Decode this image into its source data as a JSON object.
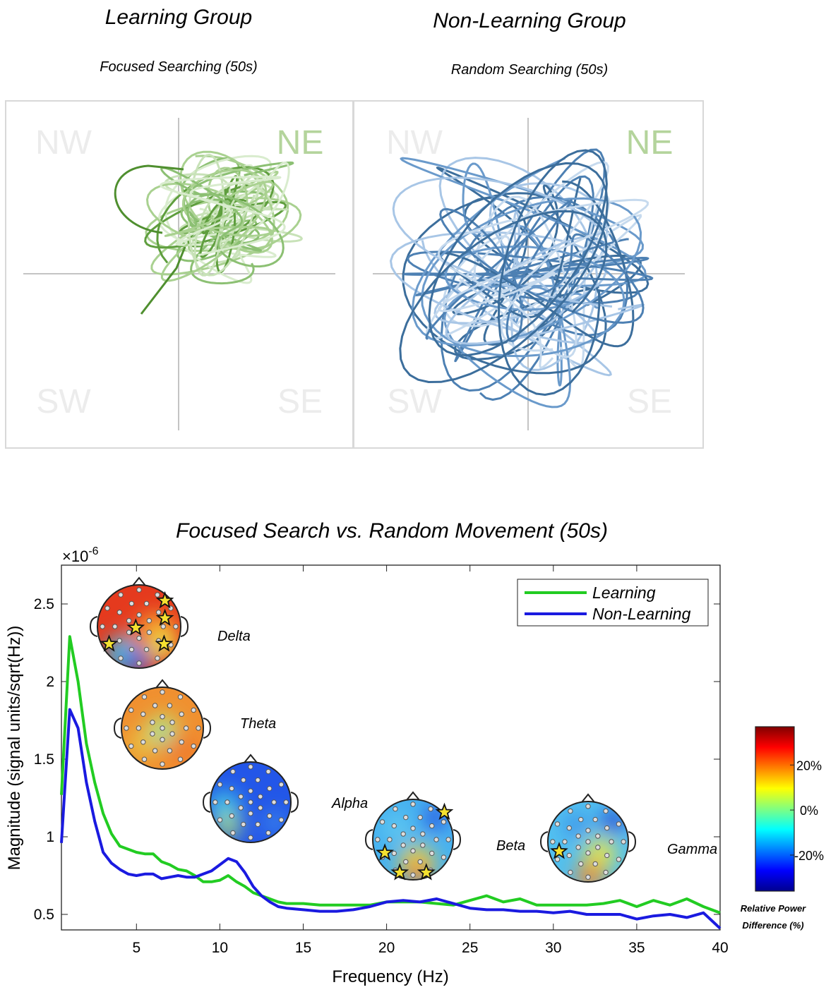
{
  "panels": [
    {
      "title": "Learning Group",
      "subtitle": "Focused Searching (50s)",
      "quadrants": [
        "NW",
        "NE",
        "SW",
        "SE"
      ]
    },
    {
      "title": "Non-Learning Group",
      "subtitle": "Random Searching (50s)",
      "quadrants": [
        "NW",
        "NE",
        "SW",
        "SE"
      ]
    }
  ],
  "chart_data": {
    "type": "line",
    "title": "Focused Search vs. Random Movement (50s)",
    "x_label": "Frequency (Hz)",
    "y_label": "Magnitude  (signal units/sqrt(Hz))",
    "y_scale_base": "×10",
    "y_scale_exponent": "-6",
    "x": [
      0.5,
      1,
      1.5,
      2,
      2.5,
      3,
      3.5,
      4,
      4.5,
      5,
      5.5,
      6,
      6.5,
      7,
      7.5,
      8,
      8.5,
      9,
      9.5,
      10,
      10.5,
      11,
      11.5,
      12,
      12.5,
      13,
      13.5,
      14,
      15,
      16,
      17,
      18,
      19,
      20,
      21,
      22,
      23,
      24,
      25,
      26,
      27,
      28,
      29,
      30,
      31,
      32,
      33,
      34,
      35,
      36,
      37,
      38,
      39,
      40
    ],
    "series": [
      {
        "name": "Learning",
        "color": "#22cc22",
        "values": [
          1.27,
          2.29,
          2.0,
          1.6,
          1.35,
          1.15,
          1.02,
          0.94,
          0.92,
          0.9,
          0.89,
          0.89,
          0.84,
          0.82,
          0.79,
          0.78,
          0.75,
          0.71,
          0.71,
          0.72,
          0.75,
          0.71,
          0.68,
          0.64,
          0.62,
          0.6,
          0.58,
          0.57,
          0.57,
          0.56,
          0.56,
          0.56,
          0.56,
          0.58,
          0.58,
          0.58,
          0.57,
          0.56,
          0.59,
          0.62,
          0.58,
          0.6,
          0.56,
          0.56,
          0.56,
          0.56,
          0.57,
          0.59,
          0.55,
          0.59,
          0.56,
          0.6,
          0.55,
          0.51
        ]
      },
      {
        "name": "Non-Learning",
        "color": "#1a1ae0",
        "values": [
          0.96,
          1.82,
          1.7,
          1.35,
          1.1,
          0.9,
          0.83,
          0.79,
          0.76,
          0.75,
          0.76,
          0.76,
          0.73,
          0.74,
          0.75,
          0.74,
          0.74,
          0.76,
          0.78,
          0.82,
          0.86,
          0.84,
          0.77,
          0.68,
          0.62,
          0.58,
          0.55,
          0.54,
          0.53,
          0.52,
          0.52,
          0.53,
          0.55,
          0.58,
          0.59,
          0.58,
          0.6,
          0.57,
          0.54,
          0.53,
          0.53,
          0.52,
          0.52,
          0.51,
          0.52,
          0.5,
          0.5,
          0.5,
          0.47,
          0.49,
          0.5,
          0.48,
          0.51,
          0.41
        ]
      }
    ],
    "xlim": [
      0.5,
      40
    ],
    "ylim": [
      0.4,
      2.75
    ],
    "xticks": [
      5,
      10,
      15,
      20,
      25,
      30,
      35,
      40
    ],
    "yticks": [
      0.5,
      1,
      1.5,
      2,
      2.5
    ],
    "grid": false,
    "legend": "northeast",
    "band_labels": [
      "Delta",
      "Theta",
      "Alpha",
      "Beta",
      "Gamma"
    ],
    "colorbar": {
      "label": [
        "Relative Power",
        "Difference (%)"
      ],
      "lim": [
        -36,
        37
      ],
      "ticks": [
        {
          "value": 20,
          "label": "20%"
        },
        {
          "value": 0,
          "label": "0%"
        },
        {
          "value": -20,
          "label": "-20%"
        }
      ]
    }
  }
}
